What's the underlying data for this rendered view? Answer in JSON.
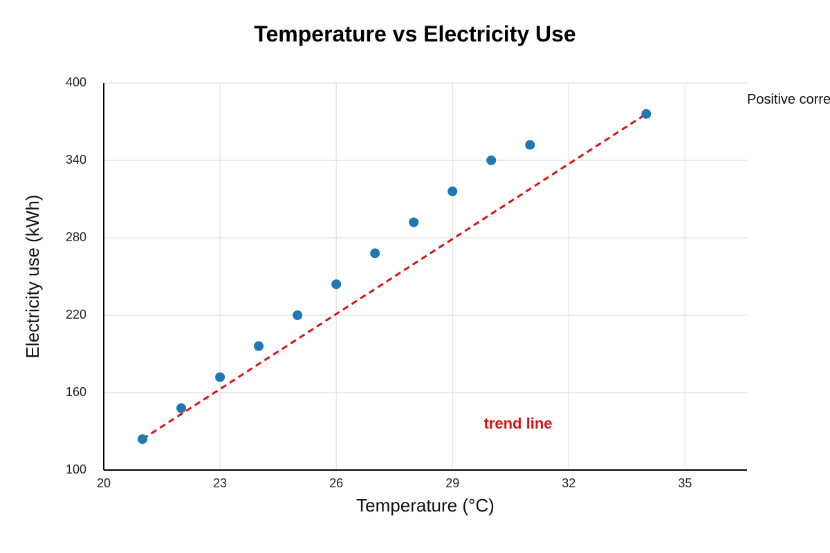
{
  "chart_data": {
    "type": "scatter",
    "title": "Temperature vs Electricity Use",
    "xlabel": "Temperature (°C)",
    "ylabel": "Electricity use (kWh)",
    "xlim": [
      20,
      36.6
    ],
    "ylim": [
      100,
      400
    ],
    "xticks": [
      20,
      23,
      26,
      29,
      32,
      35
    ],
    "yticks": [
      100,
      160,
      220,
      280,
      340,
      400
    ],
    "grid": true,
    "series": [
      {
        "x": [
          21,
          22,
          23,
          24,
          25,
          26,
          27,
          28,
          29,
          30,
          31,
          34
        ],
        "y": [
          124,
          148,
          172,
          196,
          220,
          244,
          268,
          292,
          316,
          340,
          352,
          376
        ],
        "color": "#1f77b4"
      }
    ],
    "trend_line": {
      "label": "trend line",
      "x": [
        21,
        34
      ],
      "y": [
        124,
        376
      ],
      "color": "#dd1111",
      "style": "dashed"
    },
    "annotations": [
      {
        "text": "Positive corre"
      }
    ]
  }
}
